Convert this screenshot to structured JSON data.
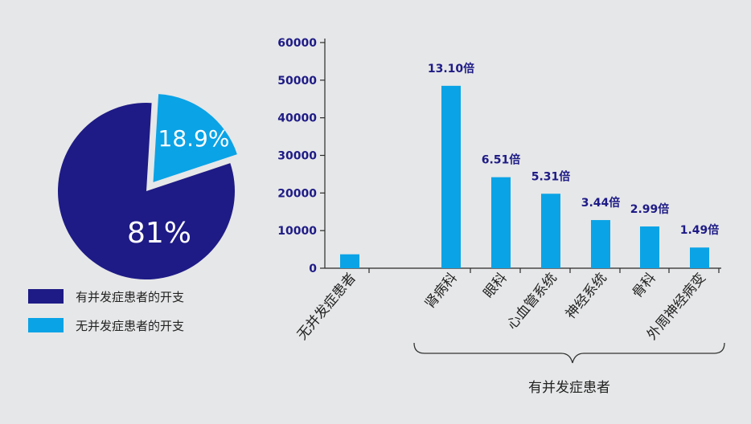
{
  "colors": {
    "background": "#e6e7e8",
    "dark_blue": "#1e1b86",
    "light_blue": "#0aa3e6",
    "label_blue": "#1e1b86",
    "axis": "#2a2a2a",
    "text": "#222222"
  },
  "chart_data": [
    {
      "type": "pie",
      "slices": [
        {
          "name": "有并发症患者的开支",
          "label": "81%",
          "value": 81,
          "color": "#1e1b86"
        },
        {
          "name": "无并发症患者的开支",
          "label": "18.9%",
          "value": 18.9,
          "color": "#0aa3e6",
          "exploded": true
        }
      ],
      "legend": [
        {
          "label": "有并发症患者的开支",
          "color": "#1e1b86"
        },
        {
          "label": "无并发症患者的开支",
          "color": "#0aa3e6"
        }
      ],
      "legend_placement": "bottom"
    },
    {
      "type": "bar",
      "categories": [
        "无并发症患者",
        "肾病科",
        "眼科",
        "心血管系统",
        "神经系统",
        "骨科",
        "外周神经病变"
      ],
      "values": [
        3700,
        48500,
        24200,
        19800,
        12800,
        11100,
        5500
      ],
      "data_labels": [
        "",
        "13.10倍",
        "6.51倍",
        "5.31倍",
        "3.44倍",
        "2.99倍",
        "1.49倍"
      ],
      "y_ticks": [
        "0",
        "10000",
        "20000",
        "30000",
        "40000",
        "50000",
        "60000"
      ],
      "ylim": [
        0,
        60000
      ],
      "grid": false,
      "bar_color": "#0aa3e6",
      "group_label": "有并发症患者"
    }
  ]
}
